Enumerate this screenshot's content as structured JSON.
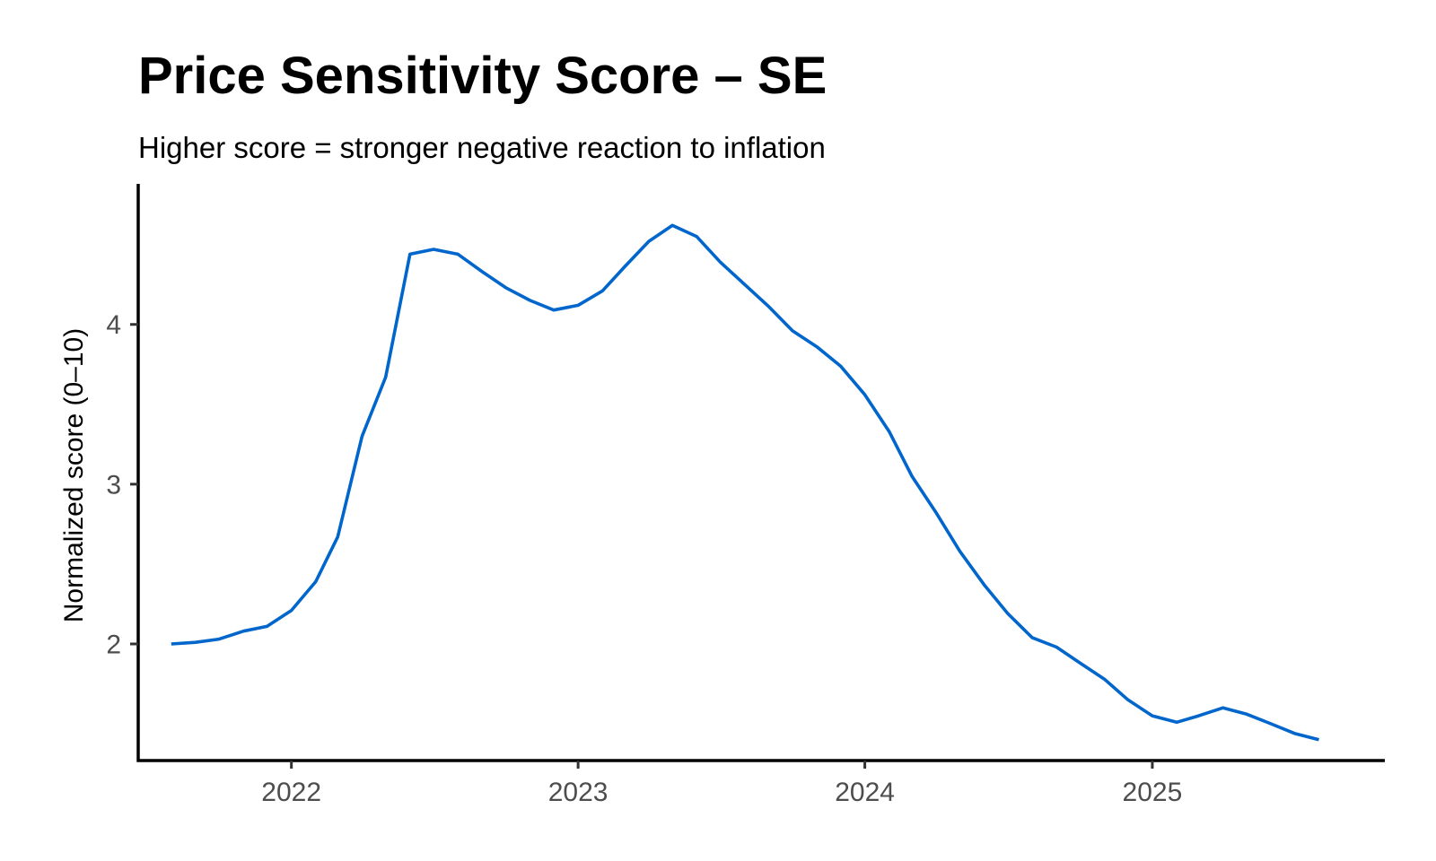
{
  "chart_data": {
    "type": "line",
    "title": "Price Sensitivity Score – SE",
    "subtitle": "Higher score = stronger negative reaction to inflation",
    "xlabel": "",
    "ylabel": "Normalized score (0–10)",
    "x_ticks": [
      "2022",
      "2023",
      "2024",
      "2025"
    ],
    "y_ticks": [
      "2",
      "3",
      "4"
    ],
    "xlim": [
      "2021-06-20",
      "2025-10-24"
    ],
    "ylim": [
      1.27,
      4.88
    ],
    "grid": false,
    "color": "#0066cc",
    "series": [
      {
        "x": [
          "2021-08",
          "2021-09",
          "2021-10",
          "2021-11",
          "2021-12",
          "2022-01",
          "2022-02",
          "2022-03",
          "2022-04",
          "2022-05",
          "2022-06",
          "2022-07",
          "2022-08",
          "2022-09",
          "2022-10",
          "2022-11",
          "2022-12",
          "2023-01",
          "2023-02",
          "2023-03",
          "2023-04",
          "2023-05",
          "2023-06",
          "2023-07",
          "2023-08",
          "2023-09",
          "2023-10",
          "2023-11",
          "2023-12",
          "2024-01",
          "2024-02",
          "2024-03",
          "2024-04",
          "2024-05",
          "2024-06",
          "2024-07",
          "2024-08",
          "2024-09",
          "2024-10",
          "2024-11",
          "2024-12",
          "2025-01",
          "2025-02",
          "2025-03",
          "2025-04",
          "2025-05",
          "2025-06",
          "2025-07",
          "2025-08"
        ],
        "values": [
          2.0,
          2.01,
          2.03,
          2.08,
          2.11,
          2.21,
          2.39,
          2.67,
          3.3,
          3.67,
          4.44,
          4.47,
          4.44,
          4.33,
          4.23,
          4.15,
          4.09,
          4.12,
          4.21,
          4.36,
          4.52,
          4.62,
          4.55,
          4.39,
          4.25,
          4.11,
          3.96,
          3.86,
          3.74,
          3.56,
          3.33,
          3.05,
          2.82,
          2.58,
          2.37,
          2.19,
          2.04,
          1.98,
          1.88,
          1.78,
          1.65,
          1.55,
          1.51,
          1.55,
          1.6,
          1.56,
          1.5,
          1.44,
          1.4
        ]
      }
    ]
  }
}
